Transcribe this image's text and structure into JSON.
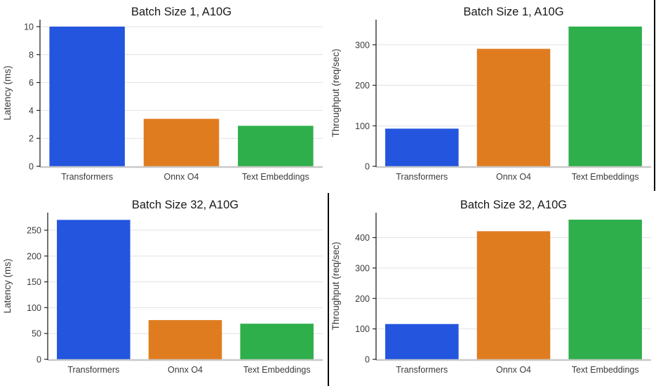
{
  "page": {
    "background": "#ffffff",
    "accent_colors": {
      "blue": "#2355DE",
      "orange": "#E07C20",
      "green": "#2EAF4B"
    },
    "text_colors": {
      "title": "#191919",
      "ticks": "#3b3b3b"
    }
  },
  "chart_data": [
    {
      "id": "batch1-latency",
      "type": "bar",
      "title": "Batch Size 1, A10G",
      "xlabel": "",
      "ylabel": "Latency (ms)",
      "categories": [
        "Transformers",
        "Onnx O4",
        "Text Embeddings"
      ],
      "values": [
        10.0,
        3.4,
        2.9
      ],
      "colors": [
        "#2355DE",
        "#E07C20",
        "#2EAF4B"
      ],
      "yticks": [
        0,
        2,
        4,
        6,
        8,
        10
      ],
      "ylim": [
        0,
        10.5
      ],
      "grid": true,
      "legend_position": "none"
    },
    {
      "id": "batch1-throughput",
      "type": "bar",
      "title": "Batch Size 1, A10G",
      "xlabel": "",
      "ylabel": "Throughput (req/sec)",
      "categories": [
        "Transformers",
        "Onnx O4",
        "Text Embeddings"
      ],
      "values": [
        93,
        290,
        345
      ],
      "colors": [
        "#2355DE",
        "#E07C20",
        "#2EAF4B"
      ],
      "yticks": [
        0,
        100,
        200,
        300
      ],
      "ylim": [
        0,
        362
      ],
      "grid": true,
      "legend_position": "none"
    },
    {
      "id": "batch32-latency",
      "type": "bar",
      "title": "Batch Size 32, A10G",
      "xlabel": "",
      "ylabel": "Latency (ms)",
      "categories": [
        "Transformers",
        "Onnx O4",
        "Text Embeddings"
      ],
      "values": [
        270,
        76,
        69
      ],
      "colors": [
        "#2355DE",
        "#E07C20",
        "#2EAF4B"
      ],
      "yticks": [
        0,
        50,
        100,
        150,
        200,
        250
      ],
      "ylim": [
        0,
        284
      ],
      "grid": true,
      "legend_position": "none"
    },
    {
      "id": "batch32-throughput",
      "type": "bar",
      "title": "Batch Size 32, A10G",
      "xlabel": "",
      "ylabel": "Throughput (req/sec)",
      "categories": [
        "Transformers",
        "Onnx O4",
        "Text Embeddings"
      ],
      "values": [
        116,
        421,
        459
      ],
      "colors": [
        "#2355DE",
        "#E07C20",
        "#2EAF4B"
      ],
      "yticks": [
        0,
        100,
        200,
        300,
        400
      ],
      "ylim": [
        0,
        482
      ],
      "grid": true,
      "legend_position": "none"
    }
  ]
}
